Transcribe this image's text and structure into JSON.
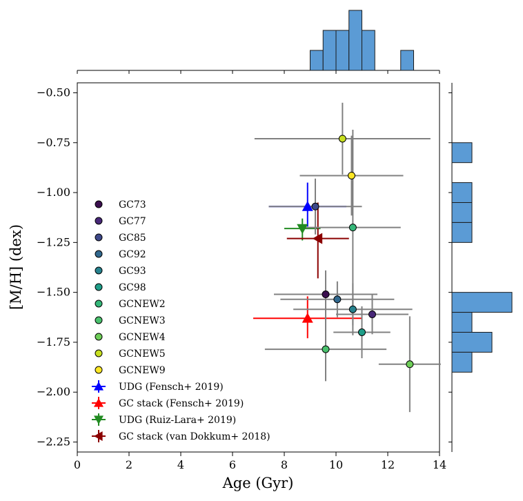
{
  "chart_data": {
    "type": "scatter",
    "xlabel": "Age (Gyr)",
    "ylabel": "[M/H] (dex)",
    "xlim": [
      0,
      14
    ],
    "ylim": [
      -2.3,
      -0.45
    ],
    "xticks": [
      "0",
      "2",
      "4",
      "6",
      "8",
      "10",
      "12",
      "14"
    ],
    "xtick_values": [
      0,
      2,
      4,
      6,
      8,
      10,
      12,
      14
    ],
    "yticks": [
      "-0.50",
      "-0.75",
      "-1.00",
      "-1.25",
      "-1.50",
      "-1.75",
      "-2.00",
      "-2.25"
    ],
    "ytick_values": [
      -0.5,
      -0.75,
      -1.0,
      -1.25,
      -1.5,
      -1.75,
      -2.0,
      -2.25
    ],
    "legend_position": "lower-left",
    "gc_points": [
      {
        "name": "GC73",
        "color": "#3b0f4f",
        "age": 9.6,
        "mh": -1.51,
        "xerr": 2.0,
        "yerr": 0.12
      },
      {
        "name": "GC77",
        "color": "#482878",
        "age": 11.4,
        "mh": -1.61,
        "xerr": 1.4,
        "yerr": 0.1
      },
      {
        "name": "GC85",
        "color": "#3e4989",
        "age": 9.2,
        "mh": -1.07,
        "xerr": 1.8,
        "yerr": 0.14
      },
      {
        "name": "GC92",
        "color": "#31688e",
        "age": 10.05,
        "mh": -1.535,
        "xerr": 2.2,
        "yerr": 0.09
      },
      {
        "name": "GC93",
        "color": "#26828e",
        "age": 10.65,
        "mh": -1.585,
        "xerr": 2.3,
        "yerr": 0.13
      },
      {
        "name": "GC98",
        "color": "#1f9e89",
        "age": 11.0,
        "mh": -1.7,
        "xerr": 1.1,
        "yerr": 0.13
      },
      {
        "name": "GCNEW2",
        "color": "#35b779",
        "age": 10.65,
        "mh": -1.175,
        "xerr": 1.85,
        "yerr": 0.49
      },
      {
        "name": "GCNEW3",
        "color": "#4ac16d",
        "age": 9.6,
        "mh": -1.785,
        "xerr": 2.35,
        "yerr": 0.16
      },
      {
        "name": "GCNEW4",
        "color": "#6ece58",
        "age": 12.85,
        "mh": -1.86,
        "xerr": 1.2,
        "yerr": 0.24
      },
      {
        "name": "GCNEW5",
        "color": "#c8e020",
        "age": 10.25,
        "mh": -0.73,
        "xerr": 3.4,
        "yerr": 0.18
      },
      {
        "name": "GCNEW9",
        "color": "#fde725",
        "age": 10.6,
        "mh": -0.915,
        "xerr": 2.0,
        "yerr": 0.2
      }
    ],
    "reference_points": [
      {
        "name": "UDG (Fensch+ 2019)",
        "color": "#0000ff",
        "marker": "triangle-up",
        "age": 8.9,
        "mh": -1.07,
        "xerr_lo": 1.5,
        "xerr_hi": 1.5,
        "yerr_lo": 0.1,
        "yerr_hi": 0.12
      },
      {
        "name": "GC stack (Fensch+ 2019)",
        "color": "#ff0000",
        "marker": "triangle-up",
        "age": 8.9,
        "mh": -1.63,
        "xerr_lo": 2.1,
        "xerr_hi": 2.1,
        "yerr_lo": 0.1,
        "yerr_hi": 0.11
      },
      {
        "name": "UDG (Ruiz-Lara+ 2019)",
        "color": "#228b22",
        "marker": "triangle-down",
        "age": 8.7,
        "mh": -1.18,
        "xerr_lo": 0.7,
        "xerr_hi": 0.7,
        "yerr_lo": 0.06,
        "yerr_hi": 0.05
      },
      {
        "name": "GC stack (van Dokkum+ 2018)",
        "color": "#8b0000",
        "marker": "triangle-left",
        "age": 9.3,
        "mh": -1.23,
        "xerr_lo": 1.2,
        "xerr_hi": 1.2,
        "yerr_lo": 0.2,
        "yerr_hi": 0.18
      }
    ],
    "age_histogram": {
      "bin_edges": [
        9.0,
        9.5,
        10.0,
        10.5,
        11.0,
        11.5,
        12.0,
        12.5,
        13.0
      ],
      "counts": [
        1,
        2,
        2,
        3,
        2,
        0,
        0,
        1
      ],
      "color": "#5b9bd5"
    },
    "mh_histogram": {
      "bins": [
        {
          "lo": -0.85,
          "hi": -0.75,
          "count": 1
        },
        {
          "lo": -1.05,
          "hi": -0.95,
          "count": 1
        },
        {
          "lo": -1.15,
          "hi": -1.05,
          "count": 1
        },
        {
          "lo": -1.25,
          "hi": -1.15,
          "count": 1
        },
        {
          "lo": -1.6,
          "hi": -1.5,
          "count": 3
        },
        {
          "lo": -1.7,
          "hi": -1.6,
          "count": 1
        },
        {
          "lo": -1.8,
          "hi": -1.7,
          "count": 2
        },
        {
          "lo": -1.9,
          "hi": -1.8,
          "count": 1
        }
      ],
      "color": "#5b9bd5"
    }
  }
}
